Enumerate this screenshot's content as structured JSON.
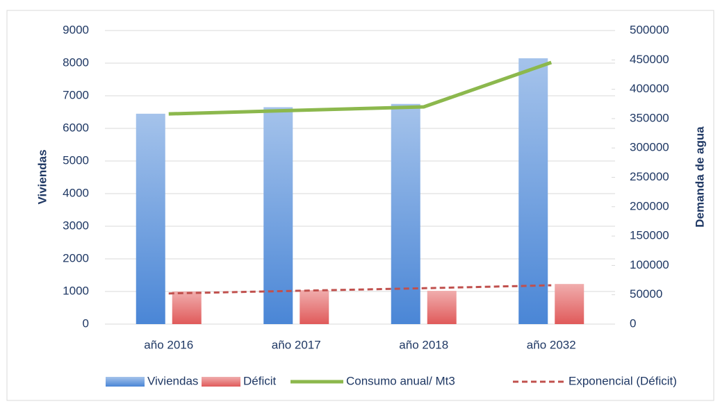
{
  "chart_data": {
    "type": "bar",
    "categories": [
      "año 2016",
      "año 2017",
      "año 2018",
      "año 2032"
    ],
    "series": [
      {
        "name": "Viviendas",
        "type": "bar",
        "color": "#4a86d6",
        "values": [
          6450,
          6650,
          6750,
          8150
        ]
      },
      {
        "name": "Déficit",
        "type": "bar",
        "color": "#e05a5a",
        "values": [
          1000,
          1040,
          1020,
          1230
        ]
      },
      {
        "name": "Consumo anual/ Mt3",
        "type": "line",
        "axis": "y2",
        "color": "#8cb84d",
        "values": [
          358000,
          364000,
          370000,
          445600
        ]
      },
      {
        "name": "Exponencial (Déficit)",
        "type": "line",
        "dashed": true,
        "color": "#c0504d",
        "values": [
          940,
          1020,
          1100,
          1190
        ]
      }
    ],
    "ylabel": "Viviendas",
    "y2label": "Demanda de agua",
    "ylim": [
      0,
      9000
    ],
    "yticks": [
      0,
      1000,
      2000,
      3000,
      4000,
      5000,
      6000,
      7000,
      8000,
      9000
    ],
    "y2lim": [
      0,
      500000
    ],
    "y2ticks": [
      0,
      50000,
      100000,
      150000,
      200000,
      250000,
      300000,
      350000,
      400000,
      450000,
      500000
    ],
    "grid": true,
    "legend": "bottom"
  }
}
